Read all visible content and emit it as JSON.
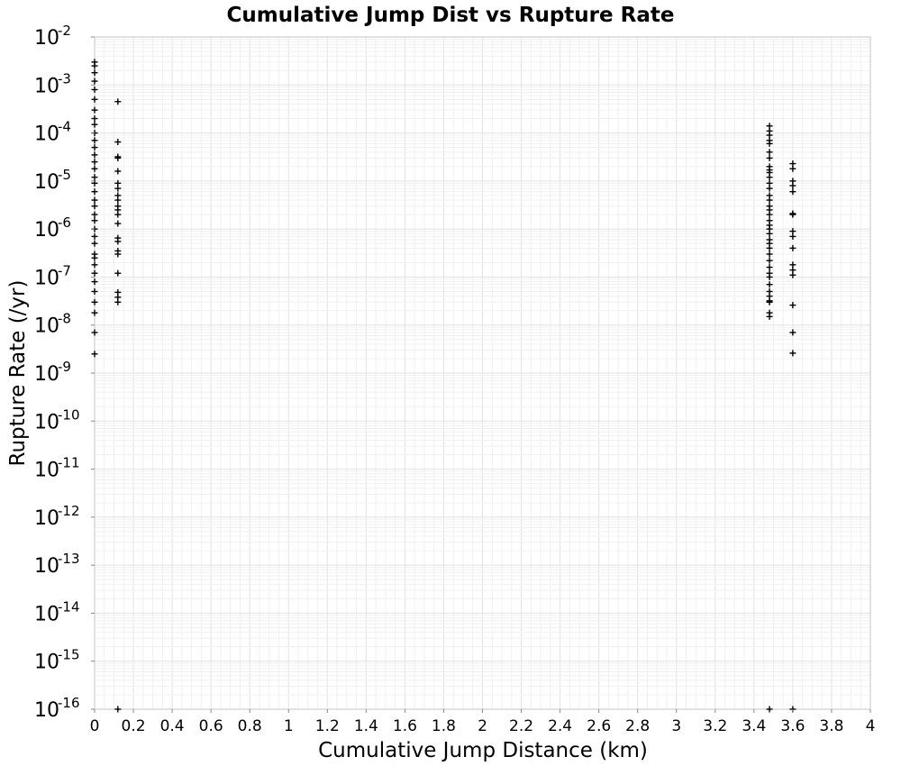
{
  "chart_data": {
    "type": "scatter",
    "title": "Cumulative Jump Dist vs Rupture Rate",
    "xlabel": "Cumulative Jump Distance (km)",
    "ylabel": "Rupture Rate (/yr)",
    "xlim": [
      0,
      4
    ],
    "ylim": [
      1e-16,
      0.01
    ],
    "yscale": "log",
    "grid": true,
    "marker": "plus",
    "marker_color": "#000000",
    "x_ticks": [
      "0",
      "0.2",
      "0.4",
      "0.6",
      "0.8",
      "1",
      "1.2",
      "1.4",
      "1.6",
      "1.8",
      "2",
      "2.2",
      "2.4",
      "2.6",
      "2.8",
      "3",
      "3.2",
      "3.4",
      "3.6",
      "3.8",
      "4"
    ],
    "y_ticks": [
      {
        "base": "10",
        "exp": "-2"
      },
      {
        "base": "10",
        "exp": "-3"
      },
      {
        "base": "10",
        "exp": "-4"
      },
      {
        "base": "10",
        "exp": "-5"
      },
      {
        "base": "10",
        "exp": "-6"
      },
      {
        "base": "10",
        "exp": "-7"
      },
      {
        "base": "10",
        "exp": "-8"
      },
      {
        "base": "10",
        "exp": "-9"
      },
      {
        "base": "10",
        "exp": "-10"
      },
      {
        "base": "10",
        "exp": "-11"
      },
      {
        "base": "10",
        "exp": "-12"
      },
      {
        "base": "10",
        "exp": "-13"
      },
      {
        "base": "10",
        "exp": "-14"
      },
      {
        "base": "10",
        "exp": "-15"
      },
      {
        "base": "10",
        "exp": "-16"
      }
    ],
    "series": [
      {
        "points": [
          [
            0,
            0.003
          ],
          [
            0,
            0.0025
          ],
          [
            0,
            0.0018
          ],
          [
            0,
            0.0012
          ],
          [
            0,
            0.0008
          ],
          [
            0,
            0.0005
          ],
          [
            0,
            0.0003
          ],
          [
            0,
            0.0002
          ],
          [
            0,
            0.00015
          ],
          [
            0,
            0.0001
          ],
          [
            0,
            7e-05
          ],
          [
            0,
            5e-05
          ],
          [
            0,
            3.5e-05
          ],
          [
            0,
            2.5e-05
          ],
          [
            0,
            1.8e-05
          ],
          [
            0,
            1.2e-05
          ],
          [
            0,
            9e-06
          ],
          [
            0,
            6e-06
          ],
          [
            0,
            4e-06
          ],
          [
            0,
            3e-06
          ],
          [
            0,
            2e-06
          ],
          [
            0,
            1.5e-06
          ],
          [
            0,
            1e-06
          ],
          [
            0,
            7e-07
          ],
          [
            0,
            5e-07
          ],
          [
            0,
            3e-07
          ],
          [
            0,
            2.5e-07
          ],
          [
            0,
            1.8e-07
          ],
          [
            0,
            1.2e-07
          ],
          [
            0,
            8e-08
          ],
          [
            0,
            5e-08
          ],
          [
            0,
            3e-08
          ],
          [
            0,
            1.8e-08
          ],
          [
            0,
            7e-09
          ],
          [
            0,
            2.5e-09
          ],
          [
            0.12,
            0.00045
          ],
          [
            0.12,
            6.5e-05
          ],
          [
            0.12,
            3.2e-05
          ],
          [
            0.12,
            3e-05
          ],
          [
            0.12,
            1.6e-05
          ],
          [
            0.12,
            9e-06
          ],
          [
            0.12,
            7e-06
          ],
          [
            0.12,
            5e-06
          ],
          [
            0.12,
            4e-06
          ],
          [
            0.12,
            3e-06
          ],
          [
            0.12,
            2.5e-06
          ],
          [
            0.12,
            2e-06
          ],
          [
            0.12,
            1.3e-06
          ],
          [
            0.12,
            6.5e-07
          ],
          [
            0.12,
            5.5e-07
          ],
          [
            0.12,
            3.5e-07
          ],
          [
            0.12,
            3e-07
          ],
          [
            0.12,
            1.2e-07
          ],
          [
            0.12,
            4.8e-08
          ],
          [
            0.12,
            3.8e-08
          ],
          [
            0.12,
            3e-08
          ],
          [
            0.12,
            1e-16
          ],
          [
            3.48,
            0.00014
          ],
          [
            3.48,
            0.00011
          ],
          [
            3.48,
            9e-05
          ],
          [
            3.48,
            7e-05
          ],
          [
            3.48,
            6e-05
          ],
          [
            3.48,
            4e-05
          ],
          [
            3.48,
            3e-05
          ],
          [
            3.48,
            2e-05
          ],
          [
            3.48,
            1.7e-05
          ],
          [
            3.48,
            1.5e-05
          ],
          [
            3.48,
            1.2e-05
          ],
          [
            3.48,
            9e-06
          ],
          [
            3.48,
            7e-06
          ],
          [
            3.48,
            5e-06
          ],
          [
            3.48,
            4e-06
          ],
          [
            3.48,
            3e-06
          ],
          [
            3.48,
            2.5e-06
          ],
          [
            3.48,
            2e-06
          ],
          [
            3.48,
            1.5e-06
          ],
          [
            3.48,
            1.2e-06
          ],
          [
            3.48,
            1e-06
          ],
          [
            3.48,
            8e-07
          ],
          [
            3.48,
            6e-07
          ],
          [
            3.48,
            5e-07
          ],
          [
            3.48,
            4e-07
          ],
          [
            3.48,
            3e-07
          ],
          [
            3.48,
            2.2e-07
          ],
          [
            3.48,
            1.6e-07
          ],
          [
            3.48,
            1.2e-07
          ],
          [
            3.48,
            1e-07
          ],
          [
            3.48,
            7e-08
          ],
          [
            3.48,
            5e-08
          ],
          [
            3.48,
            4e-08
          ],
          [
            3.48,
            3.2e-08
          ],
          [
            3.48,
            3e-08
          ],
          [
            3.48,
            1.8e-08
          ],
          [
            3.48,
            1.5e-08
          ],
          [
            3.48,
            1e-16
          ],
          [
            3.6,
            2.3e-05
          ],
          [
            3.6,
            1.8e-05
          ],
          [
            3.6,
            1e-05
          ],
          [
            3.6,
            8e-06
          ],
          [
            3.6,
            6e-06
          ],
          [
            3.6,
            2.1e-06
          ],
          [
            3.6,
            2e-06
          ],
          [
            3.6,
            9e-07
          ],
          [
            3.6,
            7e-07
          ],
          [
            3.6,
            4e-07
          ],
          [
            3.6,
            1.8e-07
          ],
          [
            3.6,
            1.4e-07
          ],
          [
            3.6,
            1.1e-07
          ],
          [
            3.6,
            2.6e-08
          ],
          [
            3.6,
            7e-09
          ],
          [
            3.6,
            2.6e-09
          ],
          [
            3.6,
            1e-16
          ]
        ]
      }
    ]
  }
}
